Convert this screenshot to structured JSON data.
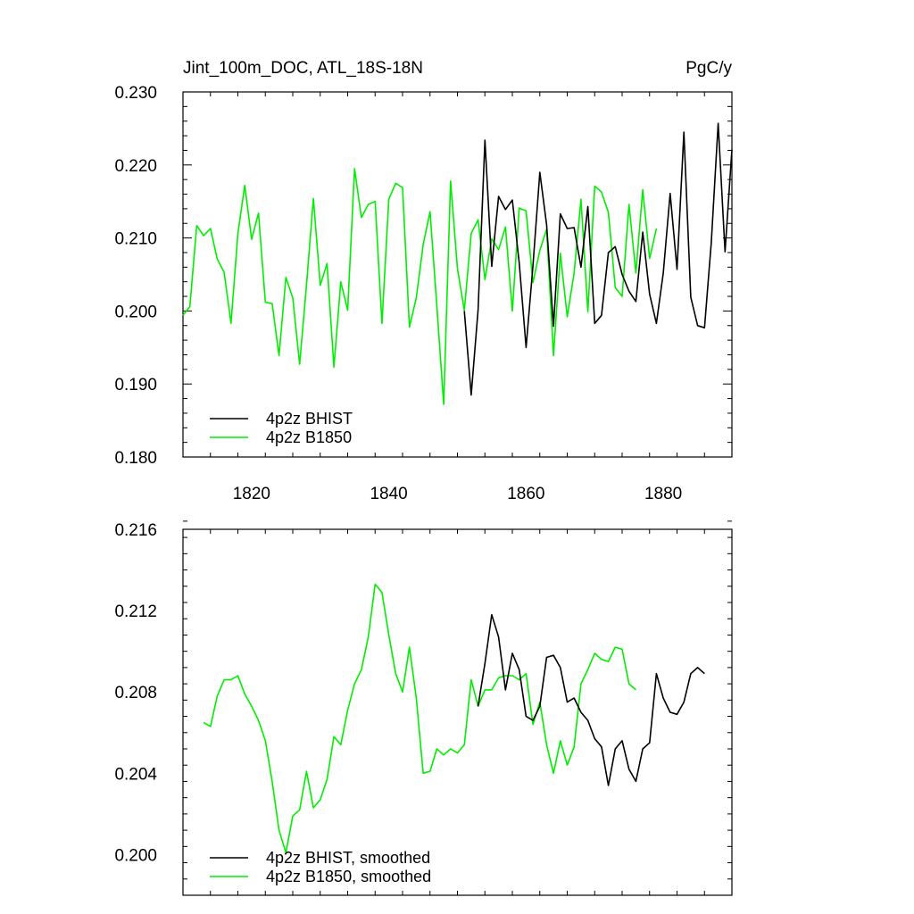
{
  "colors": {
    "bhist": "#000000",
    "b1850": "#00ee00"
  },
  "chart_data": [
    {
      "type": "line",
      "title": "Jint_100m_DOC, ATL_18S-18N",
      "units": "PgC/y",
      "xlim": [
        1810,
        1890
      ],
      "ylim": [
        0.18,
        0.23
      ],
      "xticks": [
        1820,
        1840,
        1860,
        1880
      ],
      "xtick_labels": [
        "1820",
        "1840",
        "1860",
        "1880"
      ],
      "yticks": [
        0.18,
        0.19,
        0.2,
        0.21,
        0.22,
        0.23
      ],
      "ytick_labels": [
        "0.180",
        "0.190",
        "0.200",
        "0.210",
        "0.220",
        "0.230"
      ],
      "legend_position": "bottom-left",
      "series": [
        {
          "name": "4p2z BHIST",
          "color": "#000000",
          "x_start": 1851,
          "values": [
            0.2,
            0.1885,
            0.2001,
            0.2234,
            0.2061,
            0.2157,
            0.2139,
            0.2152,
            0.2066,
            0.195,
            0.2062,
            0.219,
            0.2118,
            0.1979,
            0.2133,
            0.2113,
            0.2114,
            0.206,
            0.2143,
            0.1983,
            0.1994,
            0.208,
            0.2088,
            0.205,
            0.2027,
            0.2013,
            0.2108,
            0.2023,
            0.1983,
            0.2052,
            0.2161,
            0.2057,
            0.2245,
            0.2019,
            0.198,
            0.1977,
            0.2094,
            0.2257,
            0.2081,
            0.2221
          ]
        },
        {
          "name": "4p2z B1850",
          "color": "#00ee00",
          "x_start": 1810,
          "values": [
            0.1994,
            0.2006,
            0.2117,
            0.2103,
            0.2113,
            0.2071,
            0.2053,
            0.1983,
            0.2106,
            0.2172,
            0.2098,
            0.2134,
            0.2012,
            0.201,
            0.1939,
            0.2046,
            0.2018,
            0.1927,
            0.2036,
            0.2154,
            0.2035,
            0.2065,
            0.1923,
            0.204,
            0.2001,
            0.2195,
            0.2128,
            0.2146,
            0.215,
            0.1983,
            0.2153,
            0.2175,
            0.2169,
            0.1978,
            0.2018,
            0.2091,
            0.2136,
            0.2007,
            0.1872,
            0.2178,
            0.2058,
            0.2001,
            0.2106,
            0.2125,
            0.2043,
            0.2099,
            0.2084,
            0.2115,
            0.2,
            0.2141,
            0.2137,
            0.2039,
            0.2083,
            0.2112,
            0.1939,
            0.2079,
            0.1992,
            0.2052,
            0.2153,
            0.1999,
            0.2171,
            0.2163,
            0.2135,
            0.2032,
            0.202,
            0.2146,
            0.2052,
            0.2166,
            0.2072,
            0.2113
          ]
        }
      ]
    },
    {
      "type": "line",
      "xlim": [
        1810,
        1890
      ],
      "ylim": [
        0.198,
        0.216
      ],
      "yticks": [
        0.2,
        0.204,
        0.208,
        0.212,
        0.216
      ],
      "ytick_labels": [
        "0.200",
        "0.204",
        "0.208",
        "0.212",
        "0.216"
      ],
      "legend_position": "bottom-left",
      "series": [
        {
          "name": "4p2z BHIST, smoothed",
          "color": "#000000",
          "x_start": 1853,
          "values": [
            0.2073,
            0.2094,
            0.2118,
            0.2107,
            0.2081,
            0.2099,
            0.2091,
            0.2068,
            0.2066,
            0.2073,
            0.2097,
            0.2098,
            0.2092,
            0.2075,
            0.2077,
            0.207,
            0.2066,
            0.2057,
            0.2053,
            0.2034,
            0.2052,
            0.2056,
            0.2042,
            0.2036,
            0.2052,
            0.2055,
            0.2089,
            0.2077,
            0.207,
            0.2069,
            0.2075,
            0.2089,
            0.2092,
            0.2089
          ]
        },
        {
          "name": "4p2z B1850, smoothed",
          "color": "#00ee00",
          "x_start": 1813,
          "values": [
            0.2065,
            0.2063,
            0.2078,
            0.2086,
            0.2086,
            0.2088,
            0.2079,
            0.2073,
            0.2066,
            0.2056,
            0.2036,
            0.2012,
            0.2001,
            0.2019,
            0.2022,
            0.2041,
            0.2023,
            0.2027,
            0.2037,
            0.2058,
            0.2054,
            0.2071,
            0.2084,
            0.2091,
            0.2107,
            0.2133,
            0.2129,
            0.2108,
            0.2089,
            0.208,
            0.2102,
            0.2077,
            0.204,
            0.2041,
            0.2052,
            0.2049,
            0.2052,
            0.205,
            0.2054,
            0.2086,
            0.2073,
            0.2081,
            0.2081,
            0.2087,
            0.2088,
            0.2088,
            0.2086,
            0.2089,
            0.2064,
            0.2075,
            0.2054,
            0.204,
            0.2056,
            0.2044,
            0.2053,
            0.2084,
            0.2091,
            0.2099,
            0.2096,
            0.2095,
            0.2102,
            0.2101,
            0.2084,
            0.2081
          ]
        }
      ]
    }
  ]
}
